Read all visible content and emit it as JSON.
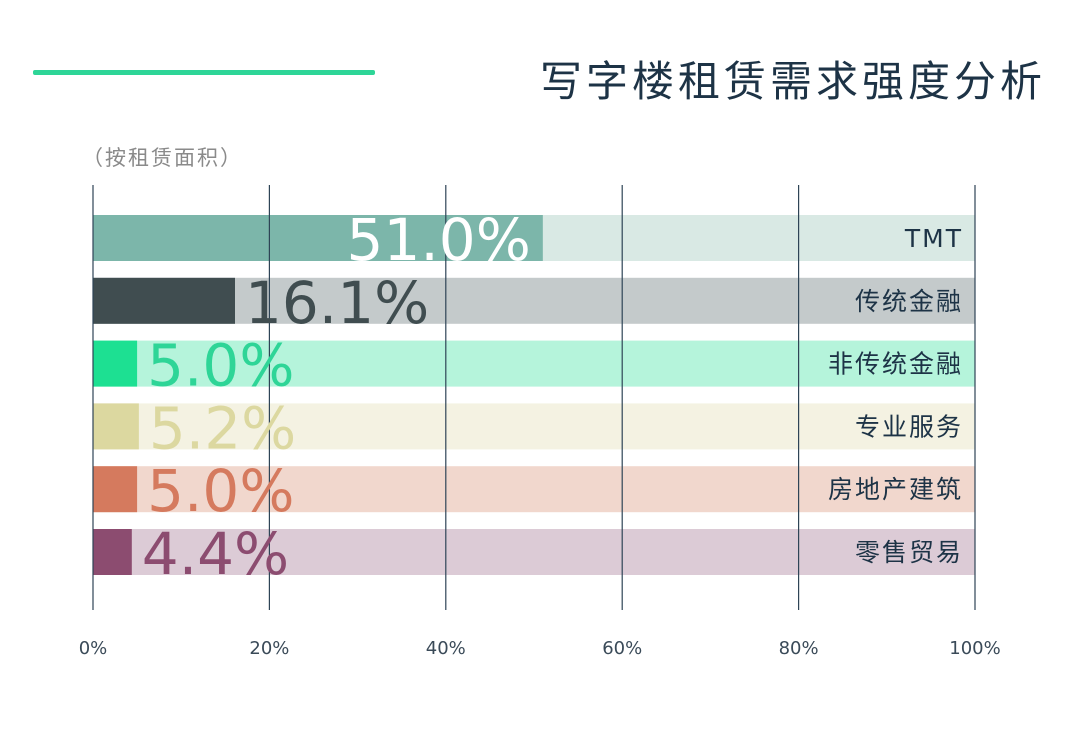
{
  "title": "写字楼租赁需求强度分析",
  "subtitle": "（按租赁面积）",
  "colors": {
    "accent_line": "#2ed597",
    "title": "#1d3346",
    "grid": "#2e4456",
    "tick": "#3a4a58"
  },
  "chart_data": {
    "type": "bar",
    "orientation": "horizontal",
    "stacked_to_100": true,
    "xlim": [
      0,
      100
    ],
    "xticks": [
      "0%",
      "20%",
      "40%",
      "60%",
      "80%",
      "100%"
    ],
    "grid": true,
    "categories": [
      "TMT",
      "传统金融",
      "非传统金融",
      "专业服务",
      "房地产建筑",
      "零售贸易"
    ],
    "values": [
      51.0,
      16.1,
      5.0,
      5.2,
      5.0,
      4.4
    ],
    "labels": [
      "51.0%",
      "16.1%",
      "5.0%",
      "5.2%",
      "5.0%",
      "4.4%"
    ],
    "colors": [
      "#7cb6aa",
      "#404d50",
      "#1de092",
      "#dcd8a0",
      "#d57a5e",
      "#8c4c70"
    ],
    "track_colors": [
      "#d9e9e4",
      "#c4cacb",
      "#b5f4db",
      "#f4f2e2",
      "#f1d7cd",
      "#dccbd6"
    ],
    "label_colors": [
      "#ffffff",
      "#404d50",
      "#2ed597",
      "#dcd8a0",
      "#d57a5e",
      "#8c4c70"
    ]
  }
}
